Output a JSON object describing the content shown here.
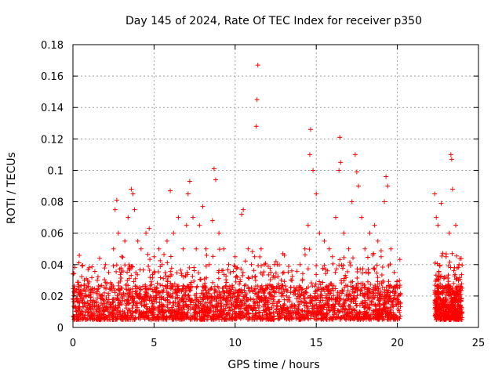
{
  "chart_data": {
    "type": "scatter",
    "title": "Day 145 of 2024, Rate Of TEC Index for receiver p350",
    "xlabel": "GPS time / hours",
    "ylabel": "ROTI / TECUs",
    "xlim": [
      0,
      25
    ],
    "ylim": [
      0,
      0.18
    ],
    "xticks": [
      "0",
      "5",
      "10",
      "15",
      "20",
      "25"
    ],
    "yticks": [
      "0",
      "0.02",
      "0.04",
      "0.06",
      "0.08",
      "0.1",
      "0.12",
      "0.14",
      "0.16",
      "0.18"
    ],
    "grid": true,
    "marker": "plus",
    "color": "#ff0000",
    "series": [
      {
        "points": [
          [
            0.1,
            0.022
          ],
          [
            0.2,
            0.018
          ],
          [
            0.3,
            0.012
          ],
          [
            0.5,
            0.02
          ],
          [
            0.7,
            0.015
          ],
          [
            0.9,
            0.03
          ],
          [
            1.0,
            0.038
          ],
          [
            1.2,
            0.025
          ],
          [
            1.5,
            0.03
          ],
          [
            1.7,
            0.02
          ],
          [
            2.0,
            0.04
          ],
          [
            2.2,
            0.035
          ],
          [
            2.5,
            0.05
          ],
          [
            2.6,
            0.075
          ],
          [
            2.7,
            0.081
          ],
          [
            2.8,
            0.06
          ],
          [
            3.0,
            0.045
          ],
          [
            3.2,
            0.055
          ],
          [
            3.4,
            0.07
          ],
          [
            3.6,
            0.088
          ],
          [
            3.7,
            0.085
          ],
          [
            3.8,
            0.075
          ],
          [
            4.0,
            0.055
          ],
          [
            4.2,
            0.05
          ],
          [
            4.5,
            0.06
          ],
          [
            4.7,
            0.063
          ],
          [
            5.0,
            0.045
          ],
          [
            5.3,
            0.05
          ],
          [
            5.5,
            0.04
          ],
          [
            5.8,
            0.055
          ],
          [
            6.0,
            0.087
          ],
          [
            6.2,
            0.06
          ],
          [
            6.5,
            0.07
          ],
          [
            6.8,
            0.05
          ],
          [
            7.0,
            0.065
          ],
          [
            7.1,
            0.085
          ],
          [
            7.2,
            0.093
          ],
          [
            7.4,
            0.07
          ],
          [
            7.6,
            0.05
          ],
          [
            7.8,
            0.065
          ],
          [
            8.0,
            0.077
          ],
          [
            8.2,
            0.05
          ],
          [
            8.4,
            0.04
          ],
          [
            8.6,
            0.068
          ],
          [
            8.7,
            0.101
          ],
          [
            8.8,
            0.094
          ],
          [
            9.0,
            0.06
          ],
          [
            9.3,
            0.05
          ],
          [
            9.6,
            0.04
          ],
          [
            10.0,
            0.045
          ],
          [
            10.4,
            0.072
          ],
          [
            10.5,
            0.075
          ],
          [
            10.8,
            0.05
          ],
          [
            11.0,
            0.04
          ],
          [
            11.2,
            0.045
          ],
          [
            11.3,
            0.128
          ],
          [
            11.35,
            0.145
          ],
          [
            11.4,
            0.167
          ],
          [
            11.6,
            0.05
          ],
          [
            11.8,
            0.04
          ],
          [
            12.2,
            0.035
          ],
          [
            12.6,
            0.04
          ],
          [
            13.0,
            0.035
          ],
          [
            13.5,
            0.03
          ],
          [
            14.0,
            0.04
          ],
          [
            14.3,
            0.05
          ],
          [
            14.5,
            0.065
          ],
          [
            14.6,
            0.11
          ],
          [
            14.65,
            0.126
          ],
          [
            14.8,
            0.1
          ],
          [
            15.0,
            0.085
          ],
          [
            15.2,
            0.06
          ],
          [
            15.5,
            0.055
          ],
          [
            15.8,
            0.05
          ],
          [
            16.0,
            0.045
          ],
          [
            16.2,
            0.07
          ],
          [
            16.4,
            0.1
          ],
          [
            16.45,
            0.121
          ],
          [
            16.5,
            0.105
          ],
          [
            16.7,
            0.06
          ],
          [
            17.0,
            0.05
          ],
          [
            17.2,
            0.08
          ],
          [
            17.4,
            0.11
          ],
          [
            17.5,
            0.099
          ],
          [
            17.6,
            0.09
          ],
          [
            17.8,
            0.07
          ],
          [
            18.0,
            0.05
          ],
          [
            18.3,
            0.06
          ],
          [
            18.6,
            0.065
          ],
          [
            18.8,
            0.055
          ],
          [
            19.0,
            0.045
          ],
          [
            19.2,
            0.08
          ],
          [
            19.3,
            0.096
          ],
          [
            19.4,
            0.09
          ],
          [
            19.6,
            0.05
          ],
          [
            19.8,
            0.035
          ],
          [
            20.0,
            0.025
          ],
          [
            22.3,
            0.085
          ],
          [
            22.4,
            0.07
          ],
          [
            22.5,
            0.065
          ],
          [
            22.7,
            0.079
          ],
          [
            23.0,
            0.045
          ],
          [
            23.2,
            0.06
          ],
          [
            23.3,
            0.11
          ],
          [
            23.35,
            0.107
          ],
          [
            23.4,
            0.088
          ],
          [
            23.6,
            0.065
          ],
          [
            23.8,
            0.04
          ],
          [
            24.0,
            0.025
          ]
        ]
      }
    ]
  }
}
